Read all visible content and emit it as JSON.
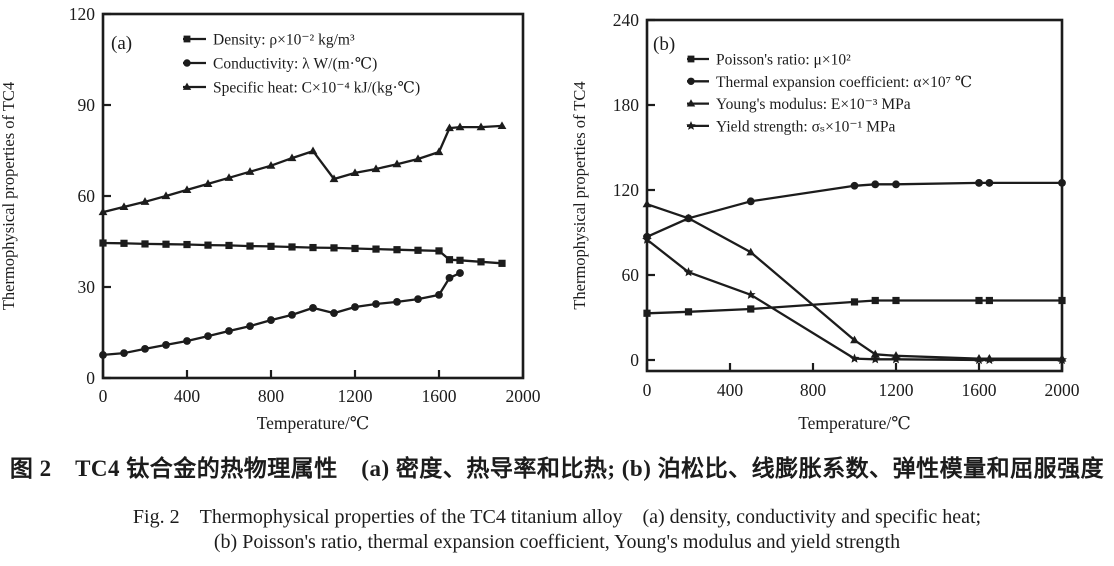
{
  "page": {
    "background": "#ffffff",
    "ink": "#1c1c1c"
  },
  "caption": {
    "line_cn": "图 2　TC4 钛合金的热物理属性　(a) 密度、热导率和比热; (b) 泊松比、线膨胀系数、弹性模量和屈服强度",
    "line_en_1": "Fig. 2　Thermophysical properties of the TC4 titanium alloy　(a) density, conductivity and specific heat;",
    "line_en_2": "(b) Poisson's ratio, thermal expansion coefficient, Young's modulus and yield strength"
  },
  "chart_data": [
    {
      "type": "line",
      "panel_label": "(a)",
      "title": "",
      "xlabel": "Temperature/℃",
      "ylabel": "Thermophysical properties of TC4",
      "xlim": [
        0,
        2000
      ],
      "ylim": [
        0,
        120
      ],
      "xticks": [
        0,
        400,
        800,
        1200,
        1600,
        2000
      ],
      "yticks": [
        0,
        30,
        60,
        90,
        120
      ],
      "grid": false,
      "legend_position": "top-left",
      "series": [
        {
          "name": "Density: ρ×10⁻² kg/m³",
          "marker": "square",
          "x": [
            0,
            100,
            200,
            300,
            400,
            500,
            600,
            700,
            800,
            900,
            1000,
            1100,
            1200,
            1300,
            1400,
            1500,
            1600,
            1650,
            1700,
            1800,
            1900
          ],
          "y": [
            44.5,
            44.4,
            44.2,
            44.1,
            44.0,
            43.8,
            43.7,
            43.5,
            43.4,
            43.2,
            43.0,
            42.9,
            42.7,
            42.5,
            42.3,
            42.1,
            41.9,
            39.0,
            38.8,
            38.3,
            37.8
          ]
        },
        {
          "name": "Conductivity: λ W/(m·℃)",
          "marker": "circle",
          "x": [
            0,
            100,
            200,
            300,
            400,
            500,
            600,
            700,
            800,
            900,
            1000,
            1100,
            1200,
            1300,
            1400,
            1500,
            1600,
            1650,
            1700
          ],
          "y": [
            7.6,
            8.2,
            9.6,
            10.9,
            12.2,
            13.8,
            15.5,
            17.1,
            19.1,
            20.8,
            23.1,
            21.4,
            23.4,
            24.4,
            25.1,
            26.0,
            27.4,
            33.0,
            34.6
          ]
        },
        {
          "name": "Specific heat: C×10⁻⁴ kJ/(kg·℃)",
          "marker": "triangle",
          "x": [
            0,
            100,
            200,
            300,
            400,
            500,
            600,
            700,
            800,
            900,
            1000,
            1100,
            1200,
            1300,
            1400,
            1500,
            1600,
            1650,
            1700,
            1800,
            1900
          ],
          "y": [
            54.7,
            56.4,
            58.1,
            60.0,
            62.0,
            64.0,
            66.0,
            68.0,
            70.0,
            72.5,
            74.8,
            65.6,
            67.6,
            68.9,
            70.5,
            72.2,
            74.5,
            82.4,
            82.7,
            82.7,
            83.1
          ]
        }
      ]
    },
    {
      "type": "line",
      "panel_label": "(b)",
      "title": "",
      "xlabel": "Temperature/℃",
      "ylabel": "Thermophysical properties of TC4",
      "xlim": [
        0,
        2000
      ],
      "ylim": [
        0,
        240
      ],
      "xticks": [
        0,
        400,
        800,
        1200,
        1600,
        2000
      ],
      "yticks": [
        0,
        60,
        120,
        180,
        240
      ],
      "grid": false,
      "legend_position": "top-left",
      "series": [
        {
          "name": "Poisson's ratio: μ×10²",
          "marker": "square",
          "x": [
            0,
            200,
            500,
            1000,
            1100,
            1200,
            1600,
            1650,
            2000
          ],
          "y": [
            33,
            34,
            36,
            41,
            42,
            42,
            42,
            42,
            42
          ]
        },
        {
          "name": "Thermal expansion coefficient: α×10⁷ ℃",
          "marker": "circle",
          "x": [
            0,
            200,
            500,
            1000,
            1100,
            1200,
            1600,
            1650,
            2000
          ],
          "y": [
            87,
            100,
            112,
            123,
            124,
            124,
            125,
            125,
            125
          ]
        },
        {
          "name": "Young's modulus: E×10⁻³ MPa",
          "marker": "triangle",
          "x": [
            0,
            200,
            500,
            1000,
            1100,
            1200,
            1600,
            1650,
            2000
          ],
          "y": [
            110,
            100,
            76,
            14,
            4,
            3,
            1,
            1,
            1
          ]
        },
        {
          "name": "Yield strength: σₛ×10⁻¹ MPa",
          "marker": "star",
          "x": [
            0,
            200,
            500,
            1000,
            1100,
            1200,
            1600,
            1650,
            2000
          ],
          "y": [
            85,
            62,
            46,
            1,
            0.5,
            0.5,
            0,
            0,
            0
          ]
        }
      ]
    }
  ]
}
